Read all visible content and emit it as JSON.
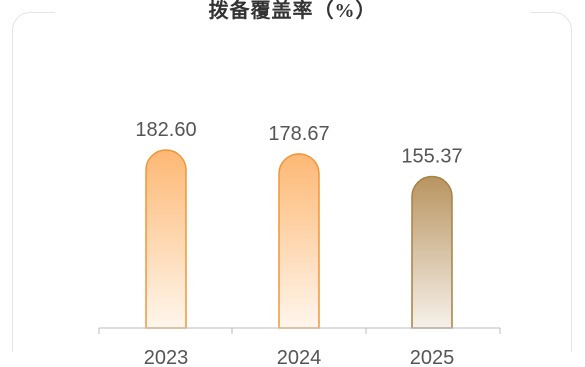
{
  "chart_data": {
    "type": "bar",
    "title": "拨备覆盖率（%）",
    "categories": [
      "2023",
      "2024",
      "2025"
    ],
    "values": [
      182.6,
      178.67,
      155.37
    ],
    "value_labels": [
      "182.60",
      "178.67",
      "155.37"
    ],
    "ylim": [
      0,
      200
    ],
    "grid": false,
    "colors": {
      "orange_top": "#fdb874",
      "orange_bottom": "#fff6ec",
      "orange_stroke": "#f2953a",
      "gold_top": "#b89460",
      "gold_bottom": "#f6f1ea",
      "gold_stroke": "#a88146"
    }
  }
}
